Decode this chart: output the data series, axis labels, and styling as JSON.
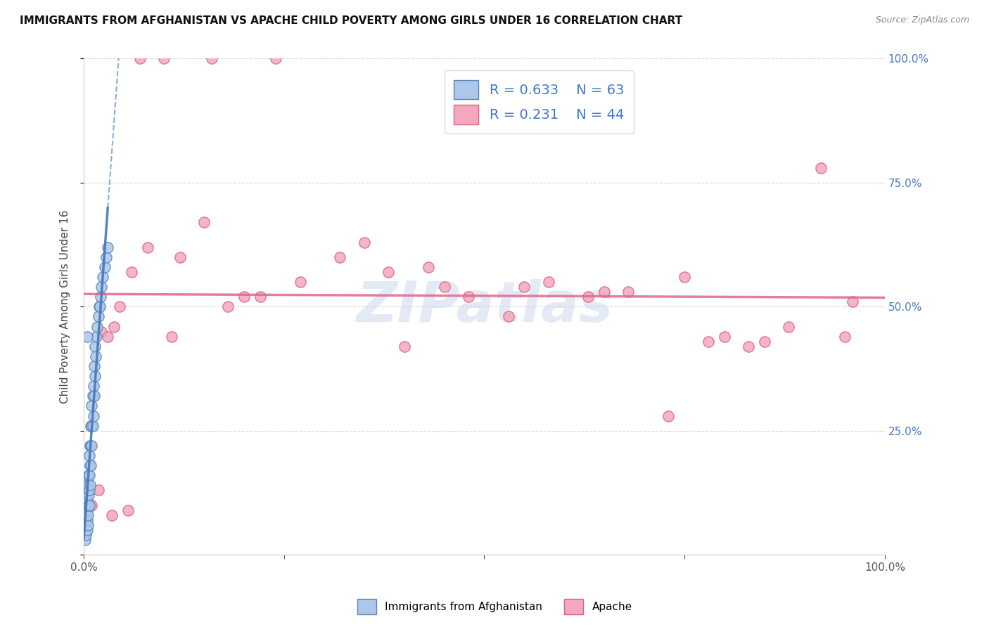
{
  "title": "IMMIGRANTS FROM AFGHANISTAN VS APACHE CHILD POVERTY AMONG GIRLS UNDER 16 CORRELATION CHART",
  "source": "Source: ZipAtlas.com",
  "ylabel": "Child Poverty Among Girls Under 16",
  "r_afghanistan": 0.633,
  "n_afghanistan": 63,
  "r_apache": 0.231,
  "n_apache": 44,
  "afghanistan_color": "#aec6e8",
  "apache_color": "#f4a8bf",
  "afghanistan_edge_color": "#5588bb",
  "apache_edge_color": "#e06080",
  "afghanistan_line_color": "#4477bb",
  "apache_line_color": "#e06888",
  "watermark": "ZIPatlas",
  "watermark_color": "#ccd8ee",
  "afghanistan_scatter_x": [
    0.001,
    0.001,
    0.001,
    0.001,
    0.002,
    0.002,
    0.002,
    0.002,
    0.002,
    0.002,
    0.002,
    0.003,
    0.003,
    0.003,
    0.003,
    0.003,
    0.003,
    0.004,
    0.004,
    0.004,
    0.004,
    0.004,
    0.005,
    0.005,
    0.005,
    0.005,
    0.006,
    0.006,
    0.006,
    0.007,
    0.007,
    0.007,
    0.007,
    0.008,
    0.008,
    0.008,
    0.009,
    0.009,
    0.009,
    0.01,
    0.01,
    0.01,
    0.011,
    0.011,
    0.012,
    0.012,
    0.013,
    0.013,
    0.014,
    0.014,
    0.015,
    0.016,
    0.017,
    0.018,
    0.019,
    0.02,
    0.021,
    0.022,
    0.024,
    0.026,
    0.028,
    0.03,
    0.004
  ],
  "afghanistan_scatter_y": [
    0.04,
    0.06,
    0.08,
    0.1,
    0.03,
    0.05,
    0.07,
    0.09,
    0.11,
    0.13,
    0.15,
    0.04,
    0.06,
    0.08,
    0.1,
    0.12,
    0.14,
    0.05,
    0.07,
    0.09,
    0.11,
    0.15,
    0.06,
    0.08,
    0.1,
    0.14,
    0.1,
    0.12,
    0.16,
    0.1,
    0.13,
    0.16,
    0.2,
    0.14,
    0.18,
    0.22,
    0.18,
    0.22,
    0.26,
    0.22,
    0.26,
    0.3,
    0.26,
    0.32,
    0.28,
    0.34,
    0.32,
    0.38,
    0.36,
    0.42,
    0.4,
    0.44,
    0.46,
    0.48,
    0.5,
    0.5,
    0.52,
    0.54,
    0.56,
    0.58,
    0.6,
    0.62,
    0.44
  ],
  "apache_scatter_x": [
    0.01,
    0.018,
    0.022,
    0.03,
    0.038,
    0.045,
    0.06,
    0.08,
    0.12,
    0.15,
    0.18,
    0.22,
    0.27,
    0.32,
    0.38,
    0.43,
    0.48,
    0.53,
    0.58,
    0.63,
    0.68,
    0.73,
    0.78,
    0.83,
    0.88,
    0.92,
    0.96,
    0.07,
    0.1,
    0.16,
    0.24,
    0.35,
    0.45,
    0.55,
    0.65,
    0.75,
    0.85,
    0.95,
    0.035,
    0.055,
    0.11,
    0.2,
    0.4,
    0.8
  ],
  "apache_scatter_y": [
    0.1,
    0.13,
    0.45,
    0.44,
    0.46,
    0.5,
    0.57,
    0.62,
    0.6,
    0.67,
    0.5,
    0.52,
    0.55,
    0.6,
    0.57,
    0.58,
    0.52,
    0.48,
    0.55,
    0.52,
    0.53,
    0.28,
    0.43,
    0.42,
    0.46,
    0.78,
    0.51,
    1.0,
    1.0,
    1.0,
    1.0,
    0.63,
    0.54,
    0.54,
    0.53,
    0.56,
    0.43,
    0.44,
    0.08,
    0.09,
    0.44,
    0.52,
    0.42,
    0.44
  ]
}
